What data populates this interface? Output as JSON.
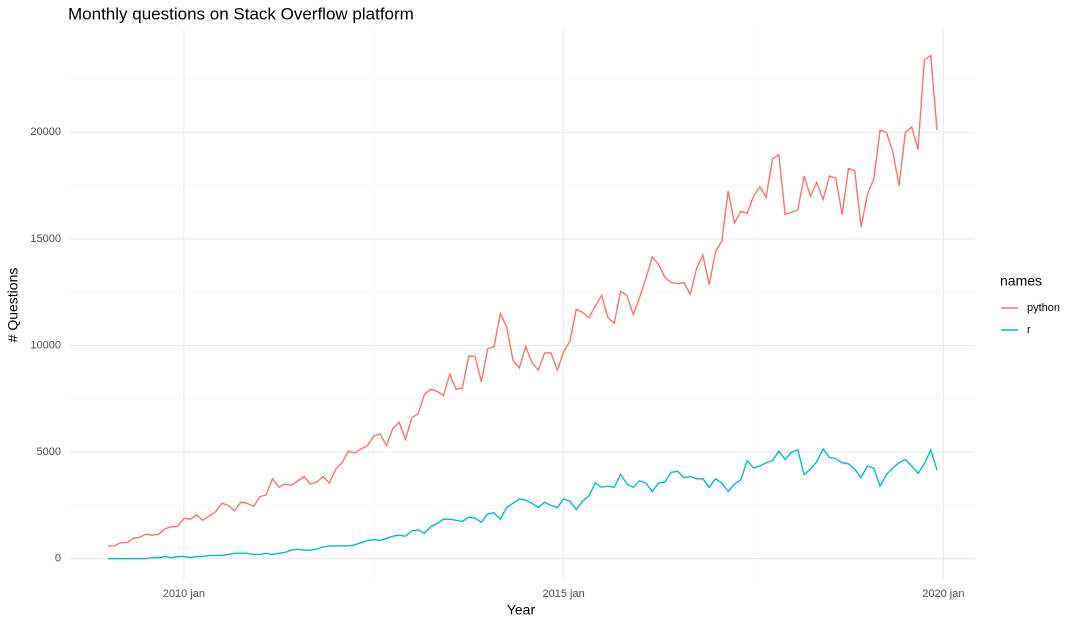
{
  "chart_data": {
    "type": "line",
    "title": "Monthly questions on Stack Overflow platform",
    "x_label": "Year",
    "y_label": "# Questions",
    "legend_title": "names",
    "legend": "right",
    "grid": true,
    "x": [
      "2009-01",
      "2009-02",
      "2009-03",
      "2009-04",
      "2009-05",
      "2009-06",
      "2009-07",
      "2009-08",
      "2009-09",
      "2009-10",
      "2009-11",
      "2009-12",
      "2010-01",
      "2010-02",
      "2010-03",
      "2010-04",
      "2010-05",
      "2010-06",
      "2010-07",
      "2010-08",
      "2010-09",
      "2010-10",
      "2010-11",
      "2010-12",
      "2011-01",
      "2011-02",
      "2011-03",
      "2011-04",
      "2011-05",
      "2011-06",
      "2011-07",
      "2011-08",
      "2011-09",
      "2011-10",
      "2011-11",
      "2011-12",
      "2012-01",
      "2012-02",
      "2012-03",
      "2012-04",
      "2012-05",
      "2012-06",
      "2012-07",
      "2012-08",
      "2012-09",
      "2012-10",
      "2012-11",
      "2012-12",
      "2013-01",
      "2013-02",
      "2013-03",
      "2013-04",
      "2013-05",
      "2013-06",
      "2013-07",
      "2013-08",
      "2013-09",
      "2013-10",
      "2013-11",
      "2013-12",
      "2014-01",
      "2014-02",
      "2014-03",
      "2014-04",
      "2014-05",
      "2014-06",
      "2014-07",
      "2014-08",
      "2014-09",
      "2014-10",
      "2014-11",
      "2014-12",
      "2015-01",
      "2015-02",
      "2015-03",
      "2015-04",
      "2015-05",
      "2015-06",
      "2015-07",
      "2015-08",
      "2015-09",
      "2015-10",
      "2015-11",
      "2015-12",
      "2016-01",
      "2016-02",
      "2016-03",
      "2016-04",
      "2016-05",
      "2016-06",
      "2016-07",
      "2016-08",
      "2016-09",
      "2016-10",
      "2016-11",
      "2016-12",
      "2017-01",
      "2017-02",
      "2017-03",
      "2017-04",
      "2017-05",
      "2017-06",
      "2017-07",
      "2017-08",
      "2017-09",
      "2017-10",
      "2017-11",
      "2017-12",
      "2018-01",
      "2018-02",
      "2018-03",
      "2018-04",
      "2018-05",
      "2018-06",
      "2018-07",
      "2018-08",
      "2018-09",
      "2018-10",
      "2018-11",
      "2018-12",
      "2019-01",
      "2019-02",
      "2019-03",
      "2019-04",
      "2019-05",
      "2019-06",
      "2019-07",
      "2019-08",
      "2019-09",
      "2019-10",
      "2019-11",
      "2019-12"
    ],
    "series": [
      {
        "name": "python",
        "color": "#F8766D",
        "values": [
          600,
          600,
          750,
          750,
          950,
          1000,
          1150,
          1100,
          1150,
          1400,
          1500,
          1500,
          1900,
          1850,
          2050,
          1800,
          2000,
          2200,
          2600,
          2500,
          2250,
          2650,
          2600,
          2450,
          2900,
          3000,
          3750,
          3350,
          3500,
          3450,
          3650,
          3850,
          3500,
          3600,
          3850,
          3550,
          4200,
          4500,
          5050,
          4950,
          5150,
          5300,
          5750,
          5850,
          5300,
          6100,
          6400,
          5600,
          6600,
          6800,
          7700,
          7950,
          7850,
          7650,
          8650,
          7950,
          8000,
          9500,
          9500,
          8300,
          9850,
          9950,
          11500,
          10850,
          9300,
          8950,
          9950,
          9200,
          8850,
          9650,
          9650,
          8850,
          9700,
          10200,
          11700,
          11550,
          11300,
          11850,
          12350,
          11300,
          11050,
          12550,
          12350,
          11450,
          12250,
          13150,
          14150,
          13800,
          13200,
          12950,
          12900,
          12950,
          12400,
          13600,
          14250,
          12850,
          14400,
          14900,
          17250,
          15750,
          16300,
          16200,
          17000,
          17450,
          16950,
          18750,
          18950,
          16150,
          16250,
          16350,
          17950,
          17000,
          17650,
          16850,
          17950,
          17850,
          16150,
          18300,
          18200,
          15550,
          17100,
          17800,
          20100,
          20000,
          19100,
          17500,
          20000,
          20250,
          19200,
          23400,
          23600,
          20100
        ]
      },
      {
        "name": "r",
        "color": "#00BFC4",
        "values": [
          0,
          0,
          0,
          0,
          0,
          0,
          0,
          50,
          50,
          100,
          50,
          100,
          100,
          50,
          100,
          100,
          150,
          150,
          150,
          200,
          250,
          250,
          250,
          200,
          200,
          250,
          200,
          250,
          300,
          400,
          450,
          400,
          400,
          450,
          550,
          600,
          600,
          600,
          600,
          650,
          750,
          850,
          900,
          850,
          950,
          1050,
          1100,
          1050,
          1300,
          1350,
          1200,
          1500,
          1650,
          1850,
          1850,
          1800,
          1750,
          1950,
          1900,
          1700,
          2100,
          2150,
          1850,
          2400,
          2600,
          2800,
          2750,
          2600,
          2400,
          2650,
          2500,
          2400,
          2800,
          2700,
          2300,
          2700,
          2950,
          3550,
          3350,
          3400,
          3350,
          3950,
          3500,
          3350,
          3650,
          3550,
          3150,
          3550,
          3600,
          4050,
          4100,
          3800,
          3850,
          3750,
          3750,
          3350,
          3750,
          3550,
          3150,
          3500,
          3700,
          4600,
          4250,
          4350,
          4500,
          4600,
          5050,
          4650,
          5000,
          5100,
          3950,
          4200,
          4550,
          5150,
          4750,
          4700,
          4500,
          4450,
          4200,
          3800,
          4350,
          4250,
          3400,
          3950,
          4250,
          4500,
          4650,
          4350,
          4000,
          4450,
          5100,
          4150
        ]
      }
    ],
    "xlim": [
      "2008-07",
      "2020-06"
    ],
    "xticks": [
      {
        "value": "2010-01",
        "label": "2010 jan"
      },
      {
        "value": "2015-01",
        "label": "2015 jan"
      },
      {
        "value": "2020-01",
        "label": "2020 jan"
      }
    ],
    "ylim": [
      -1000,
      24800
    ],
    "yticks": [
      0,
      5000,
      10000,
      15000,
      20000
    ]
  }
}
